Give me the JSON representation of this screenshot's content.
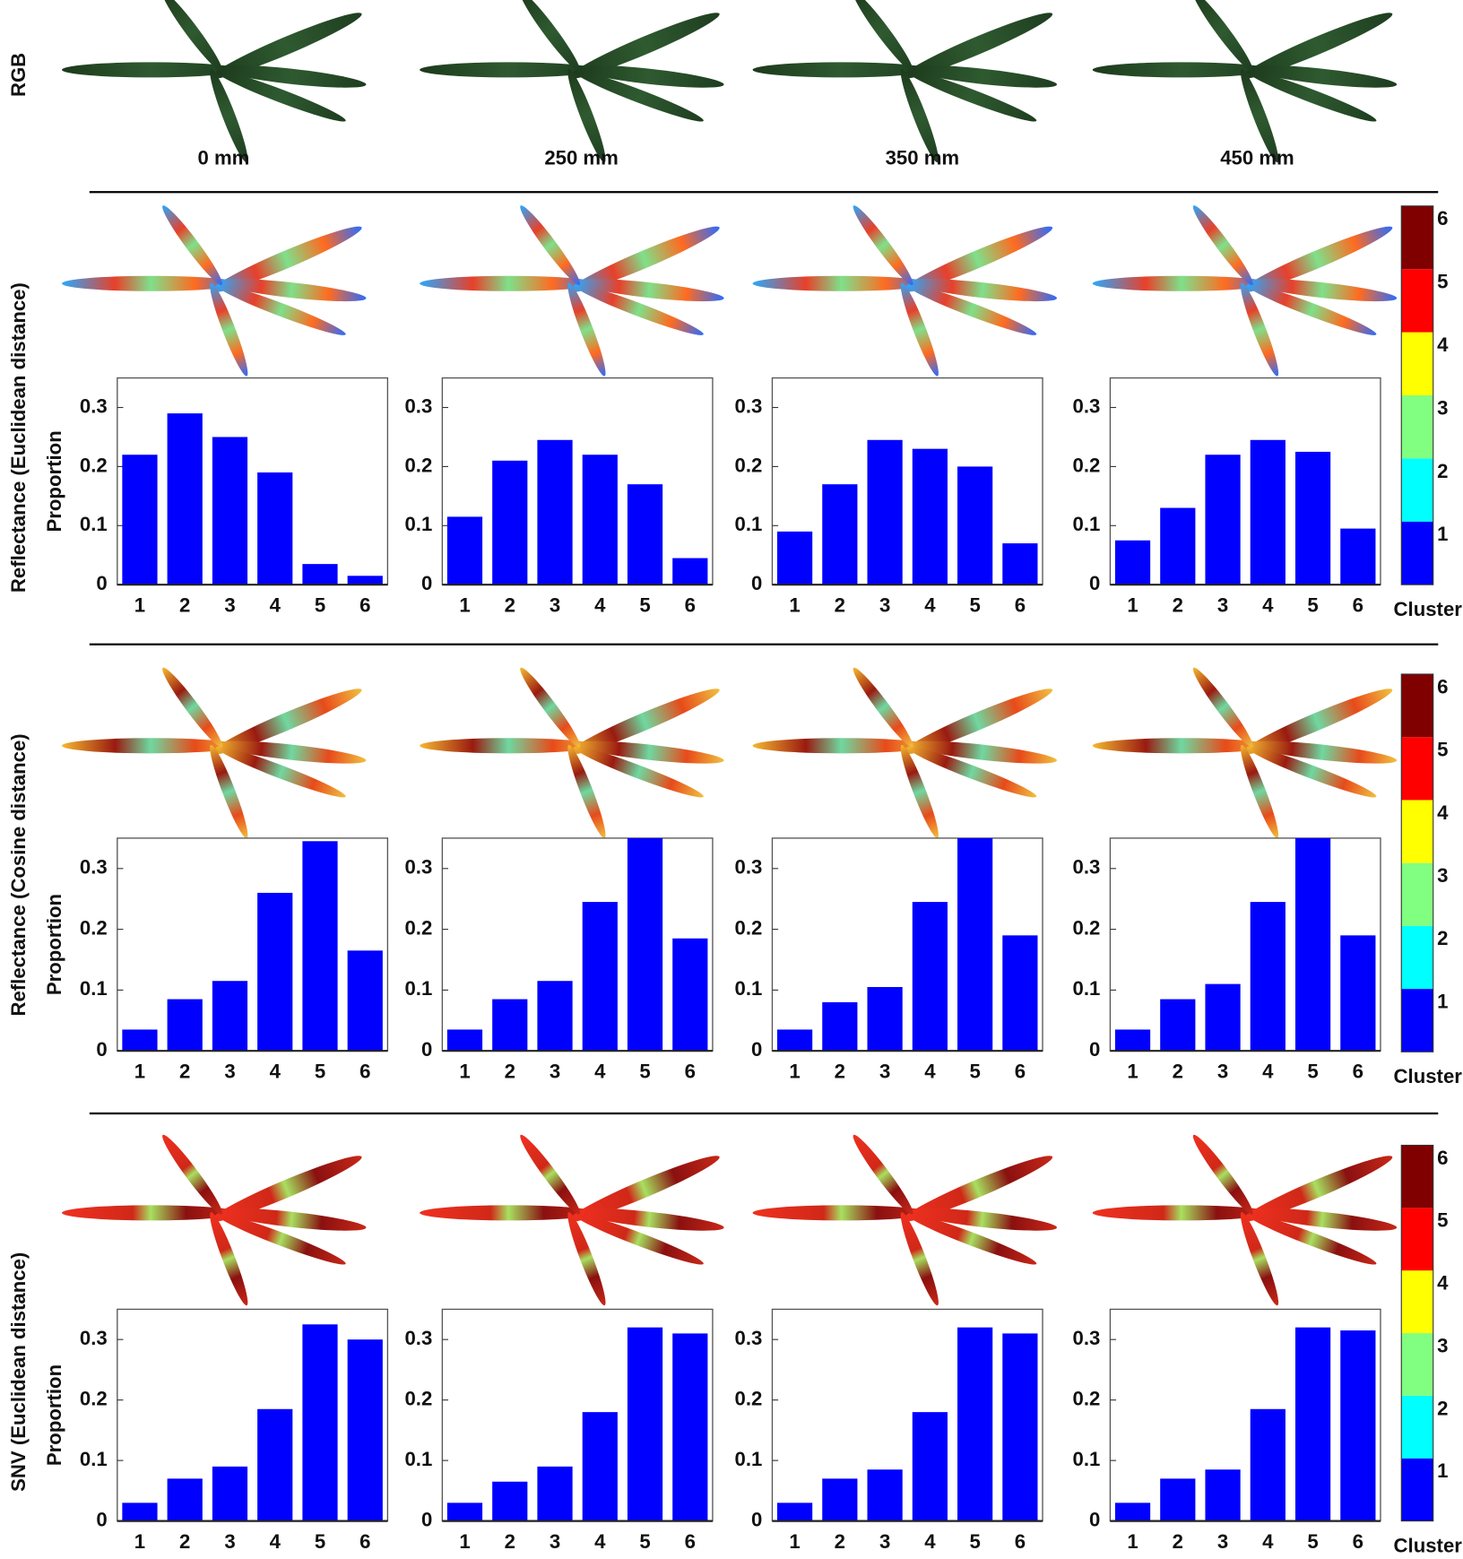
{
  "row_labels": [
    "RGB",
    "Reflectance (Euclidean distance)",
    "Reflectance (Cosine distance)",
    "SNV (Euclidean distance)"
  ],
  "distances": [
    "0 mm",
    "250 mm",
    "350 mm",
    "450 mm"
  ],
  "chart_data": [
    {
      "type": "bar",
      "ylabel": "Proportion",
      "categories": [
        "1",
        "2",
        "3",
        "4",
        "5",
        "6"
      ],
      "values": [
        0.22,
        0.29,
        0.25,
        0.19,
        0.035,
        0.015
      ],
      "color": "#0000ff",
      "ylim": [
        0,
        0.35
      ],
      "yticks": [
        0,
        0.1,
        0.2,
        0.3
      ]
    },
    {
      "type": "bar",
      "categories": [
        "1",
        "2",
        "3",
        "4",
        "5",
        "6"
      ],
      "values": [
        0.115,
        0.21,
        0.245,
        0.22,
        0.17,
        0.045
      ],
      "color": "#0000ff",
      "ylim": [
        0,
        0.35
      ],
      "yticks": [
        0,
        0.1,
        0.2,
        0.3
      ]
    },
    {
      "type": "bar",
      "categories": [
        "1",
        "2",
        "3",
        "4",
        "5",
        "6"
      ],
      "values": [
        0.09,
        0.17,
        0.245,
        0.23,
        0.2,
        0.07
      ],
      "color": "#0000ff",
      "ylim": [
        0,
        0.35
      ],
      "yticks": [
        0,
        0.1,
        0.2,
        0.3
      ]
    },
    {
      "type": "bar",
      "categories": [
        "1",
        "2",
        "3",
        "4",
        "5",
        "6"
      ],
      "values": [
        0.075,
        0.13,
        0.22,
        0.245,
        0.225,
        0.095
      ],
      "color": "#0000ff",
      "ylim": [
        0,
        0.35
      ],
      "yticks": [
        0,
        0.1,
        0.2,
        0.3
      ]
    },
    {
      "type": "bar",
      "ylabel": "Proportion",
      "categories": [
        "1",
        "2",
        "3",
        "4",
        "5",
        "6"
      ],
      "values": [
        0.035,
        0.085,
        0.115,
        0.26,
        0.345,
        0.165
      ],
      "color": "#0000ff",
      "ylim": [
        0,
        0.35
      ],
      "yticks": [
        0,
        0.1,
        0.2,
        0.3
      ]
    },
    {
      "type": "bar",
      "categories": [
        "1",
        "2",
        "3",
        "4",
        "5",
        "6"
      ],
      "values": [
        0.035,
        0.085,
        0.115,
        0.245,
        0.35,
        0.185
      ],
      "color": "#0000ff",
      "ylim": [
        0,
        0.35
      ],
      "yticks": [
        0,
        0.1,
        0.2,
        0.3
      ]
    },
    {
      "type": "bar",
      "categories": [
        "1",
        "2",
        "3",
        "4",
        "5",
        "6"
      ],
      "values": [
        0.035,
        0.08,
        0.105,
        0.245,
        0.35,
        0.19
      ],
      "color": "#0000ff",
      "ylim": [
        0,
        0.35
      ],
      "yticks": [
        0,
        0.1,
        0.2,
        0.3
      ]
    },
    {
      "type": "bar",
      "categories": [
        "1",
        "2",
        "3",
        "4",
        "5",
        "6"
      ],
      "values": [
        0.035,
        0.085,
        0.11,
        0.245,
        0.35,
        0.19
      ],
      "color": "#0000ff",
      "ylim": [
        0,
        0.35
      ],
      "yticks": [
        0,
        0.1,
        0.2,
        0.3
      ]
    },
    {
      "type": "bar",
      "ylabel": "Proportion",
      "categories": [
        "1",
        "2",
        "3",
        "4",
        "5",
        "6"
      ],
      "values": [
        0.03,
        0.07,
        0.09,
        0.185,
        0.325,
        0.3
      ],
      "color": "#0000ff",
      "ylim": [
        0,
        0.35
      ],
      "yticks": [
        0,
        0.1,
        0.2,
        0.3
      ]
    },
    {
      "type": "bar",
      "categories": [
        "1",
        "2",
        "3",
        "4",
        "5",
        "6"
      ],
      "values": [
        0.03,
        0.065,
        0.09,
        0.18,
        0.32,
        0.31
      ],
      "color": "#0000ff",
      "ylim": [
        0,
        0.35
      ],
      "yticks": [
        0,
        0.1,
        0.2,
        0.3
      ]
    },
    {
      "type": "bar",
      "categories": [
        "1",
        "2",
        "3",
        "4",
        "5",
        "6"
      ],
      "values": [
        0.03,
        0.07,
        0.085,
        0.18,
        0.32,
        0.31
      ],
      "color": "#0000ff",
      "ylim": [
        0,
        0.35
      ],
      "yticks": [
        0,
        0.1,
        0.2,
        0.3
      ]
    },
    {
      "type": "bar",
      "categories": [
        "1",
        "2",
        "3",
        "4",
        "5",
        "6"
      ],
      "values": [
        0.03,
        0.07,
        0.085,
        0.185,
        0.32,
        0.315
      ],
      "color": "#0000ff",
      "ylim": [
        0,
        0.35
      ],
      "yticks": [
        0,
        0.1,
        0.2,
        0.3
      ]
    }
  ],
  "colorbars": [
    {
      "ticks": [
        1,
        2,
        3,
        4,
        5,
        6
      ],
      "colors": [
        "#0000ff",
        "#00ffff",
        "#80ff80",
        "#ffff00",
        "#ff0000",
        "#800000"
      ],
      "label": "Cluster"
    },
    {
      "ticks": [
        1,
        2,
        3,
        4,
        5,
        6
      ],
      "colors": [
        "#0000ff",
        "#00ffff",
        "#80ff80",
        "#ffff00",
        "#ff0000",
        "#800000"
      ],
      "label": "Cluster"
    },
    {
      "ticks": [
        1,
        2,
        3,
        4,
        5,
        6
      ],
      "colors": [
        "#0000ff",
        "#00ffff",
        "#80ff80",
        "#ffff00",
        "#ff0000",
        "#800000"
      ],
      "label": "Cluster"
    }
  ]
}
